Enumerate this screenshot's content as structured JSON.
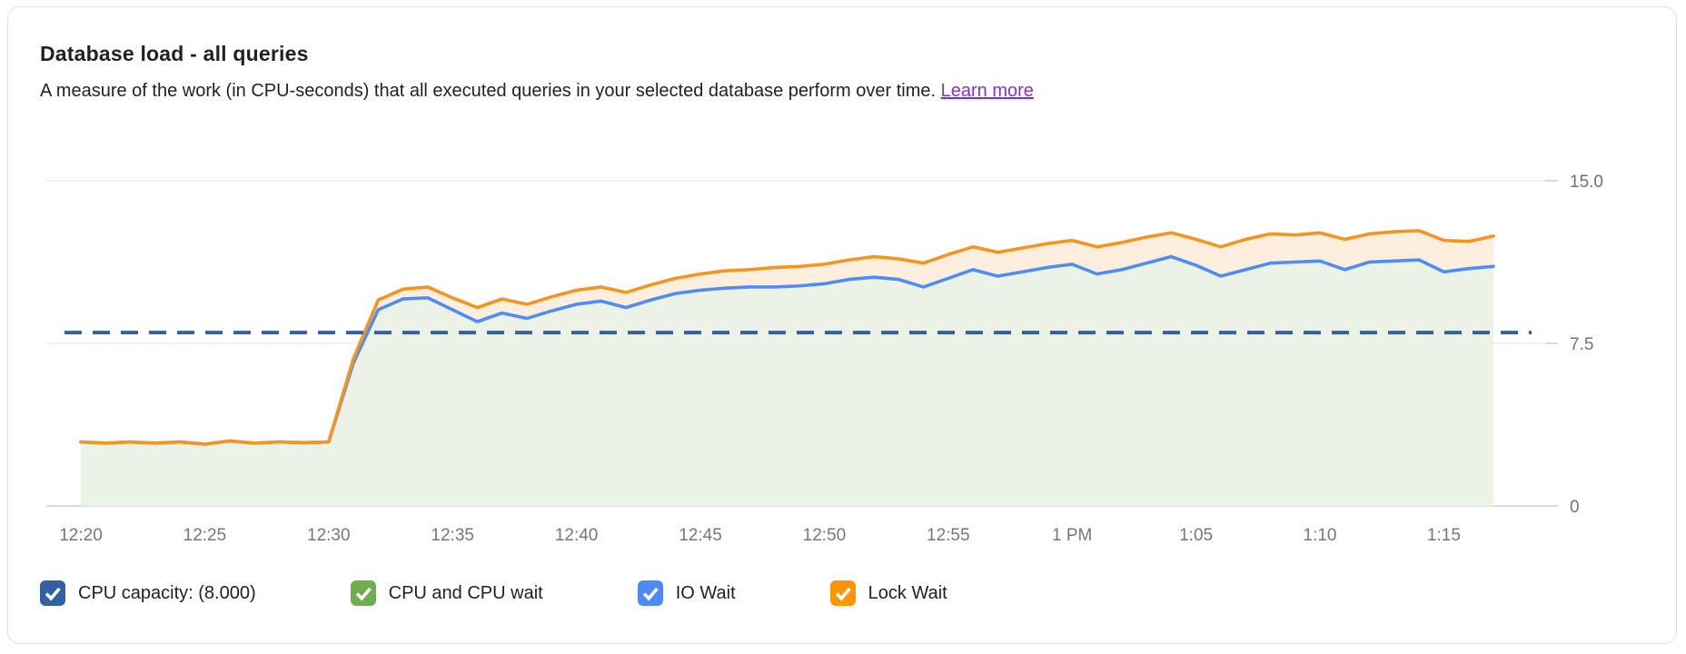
{
  "card": {
    "title": "Database load - all queries",
    "subtitle": "A measure of the work (in CPU-seconds) that all executed queries in your selected database perform over time.",
    "learn_more_label": "Learn more"
  },
  "colors": {
    "card_border": "#dcdee1",
    "gridline": "#f1f1f1",
    "axis_line": "#d8dade",
    "x_label": "#73777c",
    "y_label": "#6d7175",
    "capacity_dashed_line": "#31619e",
    "io_wait_line": "#4d8df5",
    "lock_wait_line": "#f5941e",
    "cpu_area_fill": "#edf2e7",
    "wait_band_fill": "#fdeede",
    "link": "#8430c8"
  },
  "legend": {
    "items": [
      {
        "id": "cpu-capacity",
        "label": "CPU capacity: (8.000)",
        "color": "#31619e",
        "checked": true
      },
      {
        "id": "cpu-and-cpu-wait",
        "label": "CPU and CPU wait",
        "color": "#6fad4f",
        "checked": true
      },
      {
        "id": "io-wait",
        "label": "IO Wait",
        "color": "#4c8bf5",
        "checked": true
      },
      {
        "id": "lock-wait",
        "label": "Lock Wait",
        "color": "#fc9507",
        "checked": true
      }
    ]
  },
  "chart_data": {
    "type": "area",
    "title": "Database load - all queries",
    "ylabel": "",
    "xlabel": "",
    "ylim": [
      0,
      17.4
    ],
    "y_ticks": [
      0,
      7.5,
      15.0
    ],
    "y_tick_labels": [
      "0",
      "7.5",
      "15.0"
    ],
    "x_tick_labels": [
      "12:20",
      "12:25",
      "12:30",
      "12:35",
      "12:40",
      "12:45",
      "12:50",
      "12:55",
      "1 PM",
      "1:05",
      "1:10",
      "1:15"
    ],
    "x_start": "12:20",
    "x_end": "1:17",
    "x_interval_minutes": 1,
    "grid": "horizontal-only",
    "legend_position": "bottom",
    "capacity_line": {
      "label": "CPU capacity",
      "value": 8.0,
      "style": "dashed"
    },
    "stacking_note": "Lines are cumulative stack boundaries: blue = CPU + CPU wait + IO Wait top, orange = total incl. Lock Wait; green fill below blue line, peach band between blue and orange.",
    "series": [
      {
        "name": "blue_line_values (IO Wait stack top)",
        "values": [
          2.95,
          2.9,
          2.95,
          2.9,
          2.95,
          2.85,
          3.0,
          2.9,
          2.95,
          2.92,
          2.95,
          6.6,
          9.05,
          9.55,
          9.6,
          9.05,
          8.5,
          8.9,
          8.65,
          9.0,
          9.3,
          9.45,
          9.15,
          9.5,
          9.8,
          9.95,
          10.05,
          10.1,
          10.1,
          10.15,
          10.25,
          10.45,
          10.55,
          10.45,
          10.1,
          10.5,
          10.9,
          10.6,
          10.8,
          11.0,
          11.15,
          10.7,
          10.9,
          11.2,
          11.5,
          11.1,
          10.6,
          10.9,
          11.2,
          11.25,
          11.3,
          10.9,
          11.25,
          11.3,
          11.35,
          10.8,
          10.95,
          11.05
        ]
      },
      {
        "name": "orange_line_values (Lock Wait stack top / total load)",
        "values": [
          2.95,
          2.9,
          2.95,
          2.9,
          2.95,
          2.85,
          3.0,
          2.9,
          2.95,
          2.92,
          2.95,
          6.8,
          9.5,
          10.0,
          10.1,
          9.6,
          9.15,
          9.55,
          9.3,
          9.65,
          9.95,
          10.1,
          9.85,
          10.2,
          10.5,
          10.7,
          10.85,
          10.9,
          11.0,
          11.05,
          11.15,
          11.35,
          11.5,
          11.4,
          11.2,
          11.6,
          11.95,
          11.7,
          11.9,
          12.1,
          12.25,
          11.95,
          12.15,
          12.4,
          12.6,
          12.3,
          11.95,
          12.3,
          12.55,
          12.5,
          12.6,
          12.3,
          12.55,
          12.65,
          12.7,
          12.25,
          12.2,
          12.45
        ]
      }
    ]
  }
}
